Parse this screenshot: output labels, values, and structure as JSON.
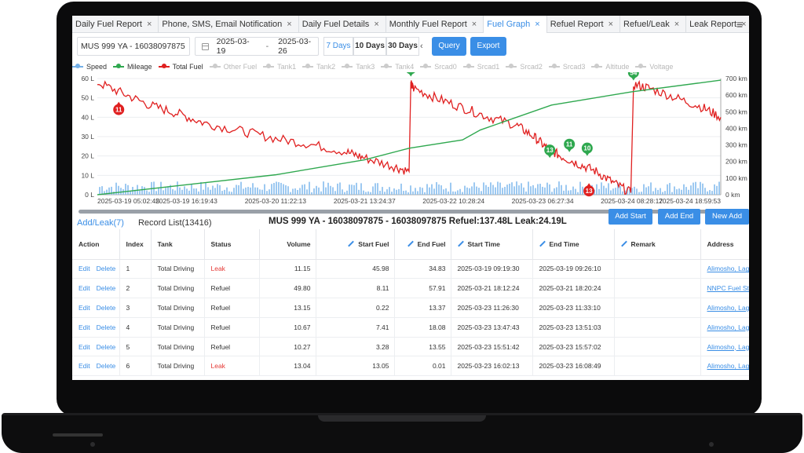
{
  "tabs": [
    {
      "label": "Daily Fuel Report",
      "close": "×",
      "active": false
    },
    {
      "label": "Phone, SMS, Email Notification",
      "close": "×",
      "active": false
    },
    {
      "label": "Daily Fuel Details",
      "close": "×",
      "active": false
    },
    {
      "label": "Monthly Fuel Report",
      "close": "×",
      "active": false
    },
    {
      "label": "Fuel Graph",
      "close": "×",
      "active": true
    },
    {
      "label": "Refuel Report",
      "close": "×",
      "active": false
    },
    {
      "label": "Refuel/Leak",
      "close": "×",
      "active": false
    },
    {
      "label": "Leak Report",
      "close": "×",
      "active": false
    }
  ],
  "tab_menu": "≡",
  "toolbar": {
    "vehicle": "MUS 999 YA - 16038097875",
    "date_from": "2025-03-19",
    "date_sep": "-",
    "date_to": "2025-03-26",
    "range_7": "7 Days",
    "range_10": "10 Days",
    "range_30": "30 Days",
    "prev_arrow": "‹",
    "query": "Query",
    "export": "Export"
  },
  "legend": [
    {
      "label": "Speed",
      "color": "#74b0e8",
      "on": true
    },
    {
      "label": "Mileage",
      "color": "#2fa84f",
      "on": true
    },
    {
      "label": "Total Fuel",
      "color": "#e02020",
      "on": true
    },
    {
      "label": "Other Fuel",
      "color": "#cccccc",
      "on": false
    },
    {
      "label": "Tank1",
      "color": "#cccccc",
      "on": false
    },
    {
      "label": "Tank2",
      "color": "#cccccc",
      "on": false
    },
    {
      "label": "Tank3",
      "color": "#cccccc",
      "on": false
    },
    {
      "label": "Tank4",
      "color": "#cccccc",
      "on": false
    },
    {
      "label": "Srcad0",
      "color": "#cccccc",
      "on": false
    },
    {
      "label": "Srcad1",
      "color": "#cccccc",
      "on": false
    },
    {
      "label": "Srcad2",
      "color": "#cccccc",
      "on": false
    },
    {
      "label": "Srcad3",
      "color": "#cccccc",
      "on": false
    },
    {
      "label": "Altitude",
      "color": "#cccccc",
      "on": false
    },
    {
      "label": "Voltage",
      "color": "#cccccc",
      "on": false
    }
  ],
  "chart_data": {
    "type": "line",
    "y_left_ticks": [
      "0 L",
      "10 L",
      "20 L",
      "30 L",
      "40 L",
      "50 L",
      "60 L"
    ],
    "y_left_range": [
      0,
      60
    ],
    "y_right_ticks": [
      "0 km",
      "100 km",
      "200 km",
      "300 km",
      "400 km",
      "500 km",
      "600 km",
      "700 km"
    ],
    "y_right_range": [
      0,
      700
    ],
    "x_ticks": [
      "2025-03-19 05:02:45",
      "2025-03-19 16:19:43",
      "2025-03-20 11:22:13",
      "2025-03-21 13:24:37",
      "2025-03-22 10:28:24",
      "2025-03-23 06:27:34",
      "2025-03-24 08:28:17",
      "2025-03-24 18:59:53"
    ],
    "x_range": [
      0,
      7
    ],
    "series": [
      {
        "name": "Total Fuel",
        "color": "#e02020",
        "x": [
          0,
          0.3,
          0.6,
          0.9,
          1.2,
          1.6,
          2.0,
          2.4,
          2.8,
          3.0,
          3.3,
          3.5,
          3.52,
          3.55,
          3.8,
          4.1,
          4.4,
          4.7,
          4.9,
          5.05,
          5.2,
          5.4,
          5.6,
          5.8,
          5.99,
          6.02,
          6.2,
          6.5,
          6.8,
          7.0
        ],
        "y": [
          58,
          52,
          46,
          42,
          37,
          33,
          29,
          26,
          22,
          19,
          15,
          12,
          57,
          55,
          50,
          45,
          40,
          36,
          30,
          24,
          20,
          16,
          12,
          6,
          1,
          57,
          55,
          50,
          45,
          40
        ]
      },
      {
        "name": "Mileage",
        "color": "#2fa84f",
        "x": [
          0,
          1.0,
          2.0,
          3.0,
          3.5,
          4.1,
          4.3,
          5.1,
          6.0,
          7.0
        ],
        "y": [
          0,
          60,
          120,
          210,
          280,
          330,
          390,
          540,
          620,
          690
        ]
      }
    ],
    "markers": [
      {
        "label": "11",
        "x": 0.24,
        "y": 48,
        "color": "#e02020",
        "shape": "down"
      },
      {
        "label": "50",
        "x": 3.52,
        "y": 61,
        "color": "#2fa84f",
        "shape": "up"
      },
      {
        "label": "13",
        "x": 5.08,
        "y": 19,
        "color": "#2fa84f",
        "shape": "up"
      },
      {
        "label": "11",
        "x": 5.3,
        "y": 22,
        "color": "#2fa84f",
        "shape": "up"
      },
      {
        "label": "10",
        "x": 5.5,
        "y": 20,
        "color": "#2fa84f",
        "shape": "up"
      },
      {
        "label": "13",
        "x": 5.52,
        "y": 6,
        "color": "#e02020",
        "shape": "down"
      },
      {
        "label": "54",
        "x": 6.02,
        "y": 59,
        "color": "#2fa84f",
        "shape": "up"
      }
    ],
    "grid": true
  },
  "records": {
    "tab_add_leak": "Add/Leak(7)",
    "tab_record_list": "Record List(13416)",
    "summary": "MUS 999 YA - 16038097875 - 16038097875 Refuel:137.48L Leak:24.19L",
    "add_start": "Add Start",
    "add_end": "Add End",
    "new_add": "New Add",
    "columns": [
      "Action",
      "Index",
      "Tank",
      "Status",
      "Volume",
      "Start Fuel",
      "End Fuel",
      "Start Time",
      "End Time",
      "Remark",
      "Address"
    ],
    "edit_label": "Edit",
    "delete_label": "Delete",
    "rows": [
      {
        "index": "1",
        "tank": "Total Driving",
        "status": "Leak",
        "volume": "11.15",
        "start_fuel": "45.98",
        "end_fuel": "34.83",
        "start_time": "2025-03-19 09:19:30",
        "end_time": "2025-03-19 09:26:10",
        "remark": "",
        "address": "Alimosho, Lagos,"
      },
      {
        "index": "2",
        "tank": "Total Driving",
        "status": "Refuel",
        "volume": "49.80",
        "start_fuel": "8.11",
        "end_fuel": "57.91",
        "start_time": "2025-03-21 18:12:24",
        "end_time": "2025-03-21 18:20:24",
        "remark": "",
        "address": "NNPC Fuel Station"
      },
      {
        "index": "3",
        "tank": "Total Driving",
        "status": "Refuel",
        "volume": "13.15",
        "start_fuel": "0.22",
        "end_fuel": "13.37",
        "start_time": "2025-03-23 11:26:30",
        "end_time": "2025-03-23 11:33:10",
        "remark": "",
        "address": "Alimosho, Lagos,"
      },
      {
        "index": "4",
        "tank": "Total Driving",
        "status": "Refuel",
        "volume": "10.67",
        "start_fuel": "7.41",
        "end_fuel": "18.08",
        "start_time": "2025-03-23 13:47:43",
        "end_time": "2025-03-23 13:51:03",
        "remark": "",
        "address": "Alimosho, Lagos,"
      },
      {
        "index": "5",
        "tank": "Total Driving",
        "status": "Refuel",
        "volume": "10.27",
        "start_fuel": "3.28",
        "end_fuel": "13.55",
        "start_time": "2025-03-23 15:51:42",
        "end_time": "2025-03-23 15:57:02",
        "remark": "",
        "address": "Alimosho, Lagos,"
      },
      {
        "index": "6",
        "tank": "Total Driving",
        "status": "Leak",
        "volume": "13.04",
        "start_fuel": "13.05",
        "end_fuel": "0.01",
        "start_time": "2025-03-23 16:02:13",
        "end_time": "2025-03-23 16:08:49",
        "remark": "",
        "address": "Alimosho, Lagos,"
      }
    ]
  }
}
